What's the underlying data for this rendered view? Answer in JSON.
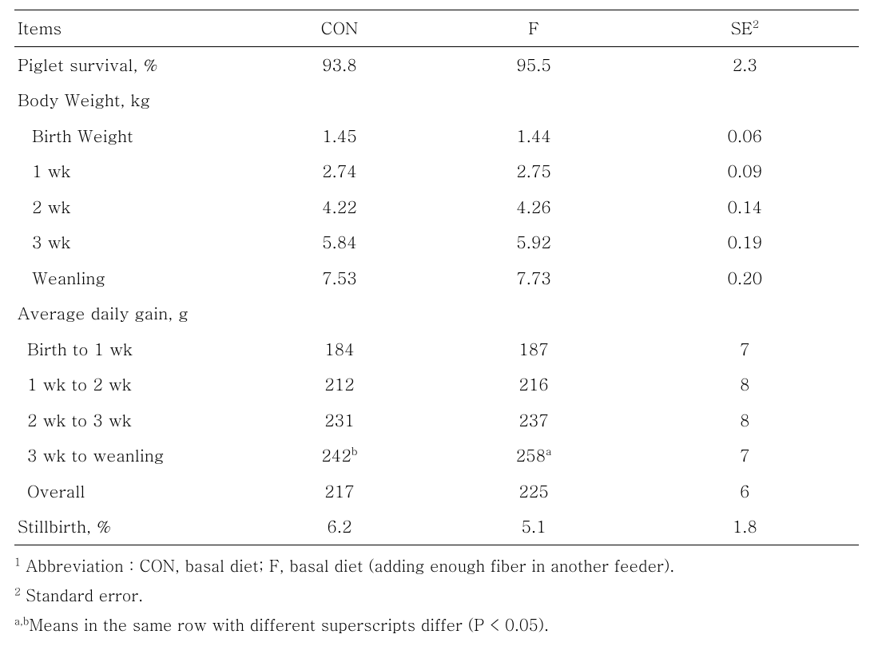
{
  "table": {
    "background_color": "#ffffff",
    "text_color": "#000000",
    "border_color": "#000000",
    "font_size_pt": 16,
    "header": {
      "items": "Items",
      "con": "CON",
      "f": "F",
      "se": "SE",
      "se_sup": "2"
    },
    "rows": [
      {
        "kind": "data",
        "indent": 0,
        "label": "Piglet survival, %",
        "con": "93.8",
        "f": "95.5",
        "se": "2.3"
      },
      {
        "kind": "section",
        "indent": 0,
        "label": "Body Weight, kg"
      },
      {
        "kind": "data",
        "indent": 1,
        "label": "Birth Weight",
        "con": "1.45",
        "f": "1.44",
        "se": "0.06"
      },
      {
        "kind": "data",
        "indent": 1,
        "label": "1 wk",
        "con": "2.74",
        "f": "2.75",
        "se": "0.09"
      },
      {
        "kind": "data",
        "indent": 1,
        "label": "2 wk",
        "con": "4.22",
        "f": "4.26",
        "se": "0.14"
      },
      {
        "kind": "data",
        "indent": 1,
        "label": "3 wk",
        "con": "5.84",
        "f": "5.92",
        "se": "0.19"
      },
      {
        "kind": "data",
        "indent": 1,
        "label": "Weanling",
        "con": "7.53",
        "f": "7.73",
        "se": "0.20"
      },
      {
        "kind": "section",
        "indent": 0,
        "label": "Average daily gain, g"
      },
      {
        "kind": "data",
        "indent": 2,
        "label": "Birth to 1 wk",
        "con": "184",
        "f": "187",
        "se": "7"
      },
      {
        "kind": "data",
        "indent": 2,
        "label": "1 wk to 2 wk",
        "con": "212",
        "f": "216",
        "se": "8"
      },
      {
        "kind": "data",
        "indent": 2,
        "label": "2 wk to 3 wk",
        "con": "231",
        "f": "237",
        "se": "8"
      },
      {
        "kind": "data",
        "indent": 2,
        "label": "3 wk to   weanling",
        "con": "242",
        "con_sup": "b",
        "f": "258",
        "f_sup": "a",
        "se": "7"
      },
      {
        "kind": "data",
        "indent": 2,
        "label": "Overall",
        "con": "217",
        "f": "225",
        "se": "6"
      },
      {
        "kind": "data",
        "indent": 0,
        "label": "Stillbirth, %",
        "con": "6.2",
        "f": "5.1",
        "se": "1.8"
      }
    ]
  },
  "footnotes": {
    "f1_sup": "1",
    "f1_text": " Abbreviation : CON, basal diet; F, basal diet (adding enough fiber in another feeder).",
    "f2_sup": "2",
    "f2_text": " Standard error.",
    "f3_sup": "a,b",
    "f3_text": "Means in the same row with different superscripts differ (P < 0.05)."
  }
}
